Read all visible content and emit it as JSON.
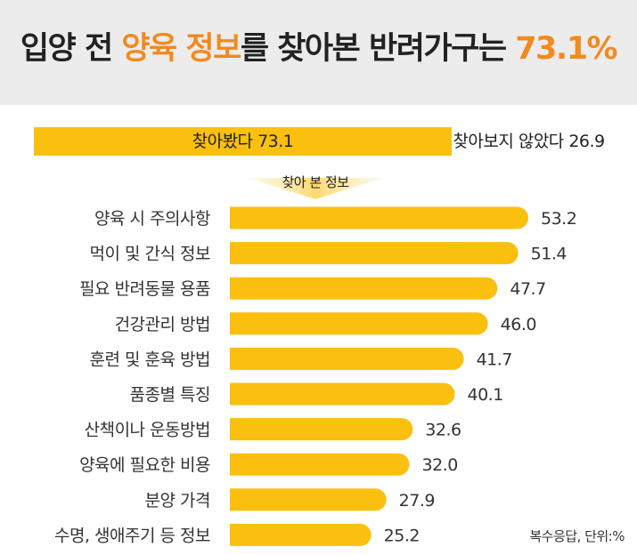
{
  "title": {
    "part1": "입양 전 ",
    "highlight1": "양육 정보",
    "part2": "를 찾아본 반려가구는 ",
    "highlight2": "73.1%"
  },
  "summary": {
    "yes_label": "찾아봤다 73.1",
    "no_label": "찾아보지 않았다 26.9",
    "yes_value": 73.1,
    "no_value": 26.9
  },
  "sub_label": "찾아 본 정보",
  "note": "복수응답, 단위:%",
  "colors": {
    "bar": "#fbbf0f",
    "highlight": "#f28a1e",
    "header_bg": "#ececec",
    "no_segment": "#ececec"
  },
  "chart_data": {
    "type": "bar",
    "orientation": "horizontal",
    "categories": [
      "양육 시 주의사항",
      "먹이 및 간식 정보",
      "필요 반려동물 용품",
      "건강관리 방법",
      "훈련 및 훈육 방법",
      "품종별 특징",
      "산책이나 운동방법",
      "양육에 필요한 비용",
      "분양 가격",
      "수명, 생애주기 등 정보"
    ],
    "values": [
      53.2,
      51.4,
      47.7,
      46.0,
      41.7,
      40.1,
      32.6,
      32.0,
      27.9,
      25.2
    ],
    "value_labels": [
      "53.2",
      "51.4",
      "47.7",
      "46.0",
      "41.7",
      "40.1",
      "32.6",
      "32.0",
      "27.9",
      "25.2"
    ],
    "grid": false,
    "legend": "none"
  }
}
